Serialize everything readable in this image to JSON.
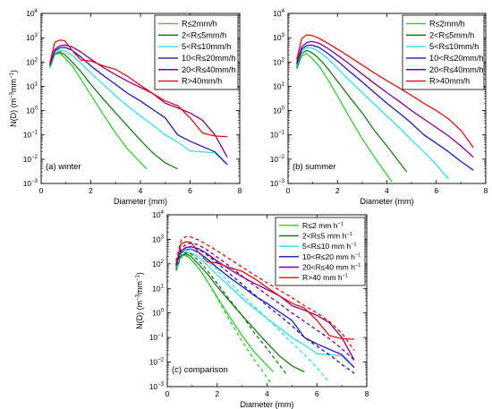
{
  "chart_data": [
    {
      "type": "line",
      "panel_label": "(a) winter",
      "xlabel": "Diameter (mm)",
      "ylabel_main": "N(D) (m",
      "ylabel_exp1": "−3",
      "ylabel_mid": "mm",
      "ylabel_exp2": "−1",
      "ylabel_end": ")",
      "xlim": [
        0,
        8
      ],
      "ylim": [
        0.001,
        10000
      ],
      "yscale": "log",
      "xticks": [
        "0",
        "2",
        "4",
        "6",
        "8"
      ],
      "yticks": [
        "10-3",
        "10-2",
        "10-1",
        "100",
        "101",
        "102",
        "103",
        "104"
      ],
      "legend_position": "top-right",
      "series": [
        {
          "name": "R≤2mm/h",
          "color": "#33cc33",
          "dashed": false,
          "x": [
            0.35,
            0.55,
            0.75,
            0.95,
            1.25,
            1.6,
            2.0,
            2.5,
            3.0,
            3.5,
            4.25
          ],
          "y": [
            55,
            200,
            230,
            150,
            70,
            20,
            4.5,
            0.7,
            0.12,
            0.025,
            0.004
          ]
        },
        {
          "name": "2<R≤5mm/h",
          "color": "#1a7a1a",
          "dashed": false,
          "x": [
            0.35,
            0.55,
            0.75,
            0.95,
            1.25,
            1.6,
            2.0,
            2.5,
            3.0,
            3.5,
            4.0,
            4.5,
            5.0,
            5.5
          ],
          "y": [
            60,
            220,
            260,
            200,
            100,
            40,
            12,
            3,
            0.8,
            0.22,
            0.06,
            0.018,
            0.007,
            0.004
          ]
        },
        {
          "name": "5<R≤10mm/h",
          "color": "#33ddee",
          "dashed": false,
          "x": [
            0.35,
            0.55,
            0.75,
            0.95,
            1.25,
            1.6,
            2.0,
            2.5,
            3.0,
            3.5,
            4.0,
            4.5,
            5.0,
            5.5,
            6.0,
            7.0,
            7.5
          ],
          "y": [
            60,
            230,
            300,
            280,
            190,
            90,
            35,
            12,
            4,
            1.5,
            0.6,
            0.25,
            0.1,
            0.05,
            0.022,
            0.018,
            0.006
          ]
        },
        {
          "name": "10<R≤20mm/h",
          "color": "#1a1ab8",
          "dashed": false,
          "x": [
            0.35,
            0.55,
            0.75,
            0.95,
            1.25,
            1.6,
            2.0,
            2.5,
            3.0,
            3.5,
            4.0,
            4.5,
            5.0,
            5.5,
            6.0,
            7.0,
            7.5
          ],
          "y": [
            70,
            280,
            380,
            400,
            300,
            160,
            70,
            28,
            12,
            5,
            2.5,
            1.1,
            0.5,
            0.1,
            0.055,
            0.02,
            0.006
          ]
        },
        {
          "name": "20<R≤40mm/h",
          "color": "#880088",
          "dashed": false,
          "x": [
            0.35,
            0.55,
            0.75,
            0.95,
            1.25,
            1.6,
            2.0,
            2.5,
            3.0,
            3.5,
            4.0,
            4.5,
            5.0,
            5.5,
            6.0,
            6.5,
            7.0,
            7.5
          ],
          "y": [
            80,
            330,
            460,
            500,
            420,
            260,
            130,
            60,
            30,
            16,
            9,
            5,
            2,
            1.3,
            0.8,
            0.4,
            0.1,
            0.012
          ]
        },
        {
          "name": "R>40mm/h",
          "color": "#dd1111",
          "dashed": false,
          "x": [
            0.35,
            0.55,
            0.75,
            0.95,
            1.25,
            1.6,
            2.0,
            2.5,
            3.0,
            3.5,
            4.0,
            4.5,
            5.0,
            5.5,
            6.0,
            6.5,
            7.0,
            7.5
          ],
          "y": [
            90,
            650,
            800,
            750,
            300,
            120,
            110,
            70,
            50,
            25,
            11,
            5,
            2.5,
            1.6,
            0.5,
            0.12,
            0.09,
            0.085
          ]
        }
      ]
    },
    {
      "type": "line",
      "panel_label": "(b) summer",
      "xlabel": "Diameter (mm)",
      "xlim": [
        0,
        8
      ],
      "ylim": [
        0.001,
        10000
      ],
      "yscale": "log",
      "xticks": [
        "0",
        "2",
        "4",
        "6",
        "8"
      ],
      "yticks": [
        "10-3",
        "10-2",
        "10-1",
        "100",
        "101",
        "102",
        "103",
        "104"
      ],
      "legend_position": "top-right",
      "series": [
        {
          "name": "R≤2mm/h",
          "color": "#33cc33",
          "dashed": false,
          "x": [
            0.35,
            0.55,
            0.75,
            0.95,
            1.25,
            1.6,
            2.0,
            2.5,
            3.0,
            3.5,
            4.2
          ],
          "y": [
            50,
            180,
            220,
            150,
            70,
            20,
            4,
            0.5,
            0.07,
            0.012,
            0.0012
          ]
        },
        {
          "name": "2<R≤5mm/h",
          "color": "#1a7a1a",
          "dashed": false,
          "x": [
            0.35,
            0.55,
            0.75,
            0.95,
            1.25,
            1.6,
            2.0,
            2.5,
            3.0,
            3.5,
            4.0,
            4.8
          ],
          "y": [
            60,
            230,
            300,
            250,
            140,
            55,
            16,
            3.5,
            0.8,
            0.15,
            0.035,
            0.003
          ]
        },
        {
          "name": "5<R≤10mm/h",
          "color": "#33ddee",
          "dashed": false,
          "x": [
            0.35,
            0.55,
            0.75,
            0.95,
            1.25,
            1.6,
            2.0,
            2.5,
            3.0,
            3.5,
            4.0,
            4.5,
            5.0,
            5.5,
            6.0,
            6.5
          ],
          "y": [
            70,
            290,
            390,
            380,
            270,
            140,
            55,
            17,
            5.5,
            1.8,
            0.6,
            0.2,
            0.06,
            0.02,
            0.006,
            0.0015
          ]
        },
        {
          "name": "10<R≤20mm/h",
          "color": "#1a1ab8",
          "dashed": false,
          "x": [
            0.35,
            0.55,
            0.75,
            0.95,
            1.25,
            1.6,
            2.0,
            2.5,
            3.0,
            3.5,
            4.0,
            4.5,
            5.0,
            5.5,
            6.0,
            6.5,
            7.0,
            7.5
          ],
          "y": [
            80,
            340,
            470,
            500,
            400,
            230,
            110,
            40,
            15,
            5.5,
            2,
            0.8,
            0.3,
            0.1,
            0.045,
            0.02,
            0.008,
            0.0035
          ]
        },
        {
          "name": "20<R≤40mm/h",
          "color": "#880088",
          "dashed": false,
          "x": [
            0.35,
            0.55,
            0.75,
            0.95,
            1.25,
            1.6,
            2.0,
            2.5,
            3.0,
            3.5,
            4.0,
            4.5,
            5.0,
            5.5,
            6.0,
            6.5,
            7.0,
            7.5
          ],
          "y": [
            100,
            420,
            620,
            700,
            600,
            370,
            190,
            80,
            32,
            13,
            5.5,
            2.4,
            1,
            0.45,
            0.2,
            0.09,
            0.035,
            0.012
          ]
        },
        {
          "name": "R>40mm/h",
          "color": "#dd1111",
          "dashed": false,
          "x": [
            0.35,
            0.55,
            0.75,
            0.95,
            1.25,
            1.6,
            2.0,
            2.5,
            3.0,
            3.5,
            4.0,
            4.5,
            5.0,
            5.5,
            6.0,
            6.5,
            7.0,
            7.5
          ],
          "y": [
            130,
            900,
            1300,
            1250,
            950,
            600,
            340,
            160,
            75,
            35,
            17,
            8.5,
            4.2,
            2,
            1,
            0.45,
            0.15,
            0.03
          ]
        }
      ]
    },
    {
      "type": "line",
      "panel_label": "(c) comparison",
      "xlabel": "Diameter (mm)",
      "ylabel_main": "N(D) (m",
      "ylabel_exp1": "−3",
      "ylabel_mid": "mm",
      "ylabel_exp2": "−1",
      "ylabel_end": ")",
      "xlim": [
        0,
        8
      ],
      "ylim": [
        0.001,
        10000
      ],
      "yscale": "log",
      "xticks": [
        "0",
        "2",
        "4",
        "6",
        "8"
      ],
      "yticks": [
        "10-3",
        "10-2",
        "10-1",
        "100",
        "101",
        "102",
        "103",
        "104"
      ],
      "legend_position": "top-right",
      "series": [
        {
          "name": "R≤2 mm h",
          "name_exp": "−1",
          "color": "#33cc33",
          "dashed": false,
          "x": [
            0.35,
            0.55,
            0.75,
            0.95,
            1.25,
            1.6,
            2.0,
            2.5,
            3.0,
            3.5,
            4.25
          ],
          "y": [
            55,
            200,
            230,
            150,
            70,
            20,
            4.5,
            0.7,
            0.12,
            0.025,
            0.004
          ]
        },
        {
          "name": "2<R≤5 mm h",
          "name_exp": "−1",
          "color": "#1a7a1a",
          "dashed": false,
          "x": [
            0.35,
            0.55,
            0.75,
            0.95,
            1.25,
            1.6,
            2.0,
            2.5,
            3.0,
            3.5,
            4.0,
            4.5,
            5.0,
            5.5
          ],
          "y": [
            60,
            220,
            260,
            200,
            100,
            40,
            12,
            3,
            0.8,
            0.22,
            0.06,
            0.018,
            0.007,
            0.004
          ]
        },
        {
          "name": "5<R≤10 mm h",
          "name_exp": "−1",
          "color": "#33ddee",
          "dashed": false,
          "x": [
            0.35,
            0.55,
            0.75,
            0.95,
            1.25,
            1.6,
            2.0,
            2.5,
            3.0,
            3.5,
            4.0,
            4.5,
            5.0,
            5.5,
            6.0,
            7.0,
            7.5
          ],
          "y": [
            60,
            230,
            300,
            280,
            190,
            90,
            35,
            12,
            4,
            1.5,
            0.6,
            0.25,
            0.1,
            0.05,
            0.022,
            0.018,
            0.006
          ]
        },
        {
          "name": "10<R≤20 mm h",
          "name_exp": "−1",
          "color": "#1a1ab8",
          "dashed": false,
          "x": [
            0.35,
            0.55,
            0.75,
            0.95,
            1.25,
            1.6,
            2.0,
            2.5,
            3.0,
            3.5,
            4.0,
            4.5,
            5.0,
            5.5,
            6.0,
            7.0,
            7.5
          ],
          "y": [
            70,
            280,
            380,
            400,
            300,
            160,
            70,
            28,
            12,
            5,
            2.5,
            1.1,
            0.5,
            0.1,
            0.055,
            0.02,
            0.006
          ]
        },
        {
          "name": "20<R≤40 mm h",
          "name_exp": "−1",
          "color": "#880088",
          "dashed": false,
          "x": [
            0.35,
            0.55,
            0.75,
            0.95,
            1.25,
            1.6,
            2.0,
            2.5,
            3.0,
            3.5,
            4.0,
            4.5,
            5.0,
            5.5,
            6.0,
            6.5,
            7.0,
            7.5
          ],
          "y": [
            80,
            330,
            460,
            500,
            420,
            260,
            130,
            60,
            30,
            16,
            9,
            5,
            2,
            1.3,
            0.8,
            0.4,
            0.1,
            0.012
          ]
        },
        {
          "name": "R>40 mm h",
          "name_exp": "−1",
          "color": "#dd1111",
          "dashed": false,
          "x": [
            0.35,
            0.55,
            0.75,
            0.95,
            1.25,
            1.6,
            2.0,
            2.5,
            3.0,
            3.5,
            4.0,
            4.5,
            5.0,
            5.5,
            6.0,
            6.5,
            7.0,
            7.5
          ],
          "y": [
            90,
            650,
            800,
            750,
            300,
            120,
            110,
            70,
            50,
            25,
            11,
            5,
            2.5,
            1.6,
            0.5,
            0.12,
            0.09,
            0.085
          ]
        },
        {
          "color": "#33cc33",
          "dashed": true,
          "x": [
            0.35,
            0.55,
            0.75,
            0.95,
            1.25,
            1.6,
            2.0,
            2.5,
            3.0,
            3.5,
            4.2
          ],
          "y": [
            50,
            180,
            220,
            150,
            70,
            20,
            4,
            0.5,
            0.07,
            0.012,
            0.0012
          ]
        },
        {
          "color": "#1a7a1a",
          "dashed": true,
          "x": [
            0.35,
            0.55,
            0.75,
            0.95,
            1.25,
            1.6,
            2.0,
            2.5,
            3.0,
            3.5,
            4.0,
            4.8
          ],
          "y": [
            60,
            230,
            300,
            250,
            140,
            55,
            16,
            3.5,
            0.8,
            0.15,
            0.035,
            0.003
          ]
        },
        {
          "color": "#33ddee",
          "dashed": true,
          "x": [
            0.35,
            0.55,
            0.75,
            0.95,
            1.25,
            1.6,
            2.0,
            2.5,
            3.0,
            3.5,
            4.0,
            4.5,
            5.0,
            5.5,
            6.0,
            6.5
          ],
          "y": [
            70,
            290,
            390,
            380,
            270,
            140,
            55,
            17,
            5.5,
            1.8,
            0.6,
            0.2,
            0.06,
            0.02,
            0.006,
            0.0015
          ]
        },
        {
          "color": "#1a1ab8",
          "dashed": true,
          "x": [
            0.35,
            0.55,
            0.75,
            0.95,
            1.25,
            1.6,
            2.0,
            2.5,
            3.0,
            3.5,
            4.0,
            4.5,
            5.0,
            5.5,
            6.0,
            6.5,
            7.0,
            7.5
          ],
          "y": [
            80,
            340,
            470,
            500,
            400,
            230,
            110,
            40,
            15,
            5.5,
            2,
            0.8,
            0.3,
            0.1,
            0.045,
            0.02,
            0.008,
            0.0035
          ]
        },
        {
          "color": "#880088",
          "dashed": true,
          "x": [
            0.35,
            0.55,
            0.75,
            0.95,
            1.25,
            1.6,
            2.0,
            2.5,
            3.0,
            3.5,
            4.0,
            4.5,
            5.0,
            5.5,
            6.0,
            6.5,
            7.0,
            7.5
          ],
          "y": [
            100,
            420,
            620,
            700,
            600,
            370,
            190,
            80,
            32,
            13,
            5.5,
            2.4,
            1,
            0.45,
            0.2,
            0.09,
            0.035,
            0.012
          ]
        },
        {
          "color": "#dd1111",
          "dashed": true,
          "x": [
            0.35,
            0.55,
            0.75,
            0.95,
            1.25,
            1.6,
            2.0,
            2.5,
            3.0,
            3.5,
            4.0,
            4.5,
            5.0,
            5.5,
            6.0,
            6.5,
            7.0,
            7.5
          ],
          "y": [
            130,
            900,
            1300,
            1250,
            950,
            600,
            340,
            160,
            75,
            35,
            17,
            8.5,
            4.2,
            2,
            1,
            0.45,
            0.15,
            0.03
          ]
        }
      ]
    }
  ]
}
